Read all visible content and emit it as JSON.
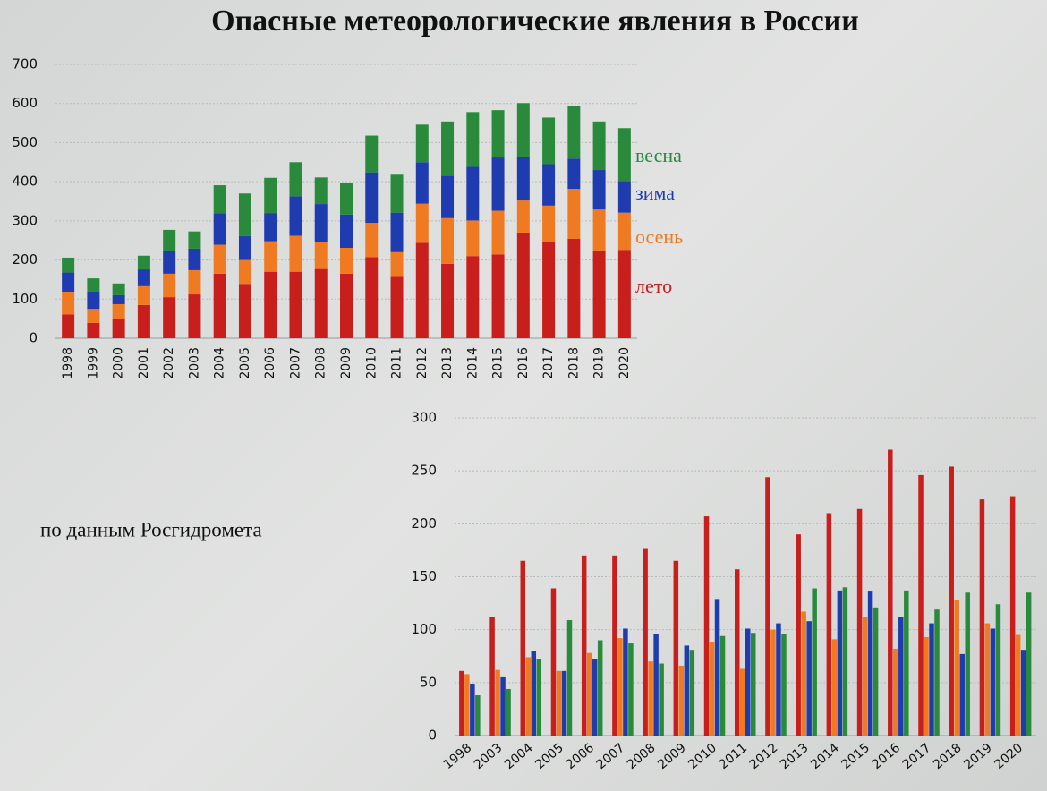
{
  "title": "Опасные метеорологические явления в России",
  "source": "по данным Росгидромета",
  "chart_data": [
    {
      "type": "bar",
      "stacked": true,
      "grid": true,
      "legend": "right",
      "categories": [
        "1998",
        "1999",
        "2000",
        "2001",
        "2002",
        "2003",
        "2004",
        "2005",
        "2006",
        "2007",
        "2008",
        "2009",
        "2010",
        "2011",
        "2012",
        "2013",
        "2014",
        "2015",
        "2016",
        "2017",
        "2018",
        "2019",
        "2020"
      ],
      "ylim": [
        0,
        700
      ],
      "yticks": [
        0,
        100,
        200,
        300,
        400,
        500,
        600,
        700
      ],
      "series": [
        {
          "name": "лето",
          "color": "#c81e1c",
          "values": [
            61,
            39,
            50,
            85,
            105,
            112,
            165,
            139,
            170,
            170,
            177,
            165,
            207,
            157,
            244,
            190,
            210,
            214,
            270,
            246,
            254,
            223,
            226
          ]
        },
        {
          "name": "осень",
          "color": "#f07a22",
          "values": [
            58,
            36,
            37,
            48,
            60,
            62,
            74,
            61,
            78,
            92,
            70,
            66,
            88,
            63,
            100,
            117,
            91,
            112,
            82,
            93,
            128,
            106,
            95
          ]
        },
        {
          "name": "зима",
          "color": "#1e3cb0",
          "values": [
            49,
            44,
            23,
            43,
            59,
            55,
            80,
            61,
            72,
            101,
            96,
            85,
            129,
            101,
            106,
            108,
            137,
            136,
            112,
            106,
            77,
            101,
            81
          ]
        },
        {
          "name": "весна",
          "color": "#2a8a3c",
          "values": [
            38,
            34,
            30,
            35,
            53,
            44,
            72,
            109,
            90,
            87,
            68,
            81,
            94,
            97,
            96,
            139,
            140,
            121,
            137,
            119,
            135,
            124,
            135
          ]
        }
      ]
    },
    {
      "type": "bar",
      "stacked": false,
      "grid": true,
      "categories": [
        "1998",
        "2003",
        "2004",
        "2005",
        "2006",
        "2007",
        "2008",
        "2009",
        "2010",
        "2011",
        "2012",
        "2013",
        "2014",
        "2015",
        "2016",
        "2017",
        "2018",
        "2019",
        "2020"
      ],
      "ylim": [
        0,
        300
      ],
      "yticks": [
        0,
        50,
        100,
        150,
        200,
        250,
        300
      ],
      "series": [
        {
          "color": "#c81e1c",
          "values": [
            61,
            112,
            165,
            139,
            170,
            170,
            177,
            165,
            207,
            157,
            244,
            190,
            210,
            214,
            270,
            246,
            254,
            223,
            226
          ]
        },
        {
          "color": "#f07a22",
          "values": [
            58,
            62,
            74,
            61,
            78,
            92,
            70,
            66,
            88,
            63,
            100,
            117,
            91,
            112,
            82,
            93,
            128,
            106,
            95
          ]
        },
        {
          "color": "#1e3cb0",
          "values": [
            49,
            55,
            80,
            61,
            72,
            101,
            96,
            85,
            129,
            101,
            106,
            108,
            137,
            136,
            112,
            106,
            77,
            101,
            81
          ]
        },
        {
          "color": "#2a8a3c",
          "values": [
            38,
            44,
            72,
            109,
            90,
            87,
            68,
            81,
            94,
            97,
            96,
            139,
            140,
            121,
            137,
            119,
            135,
            124,
            135
          ]
        }
      ]
    }
  ]
}
